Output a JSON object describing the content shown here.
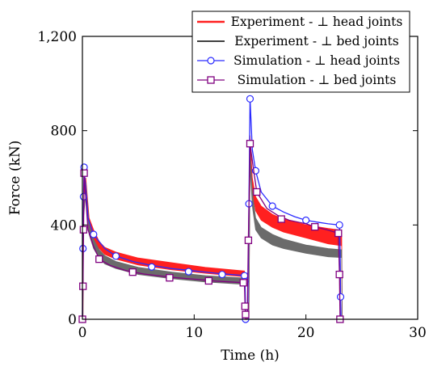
{
  "chart_data": {
    "type": "line",
    "xlabel": "Time (h)",
    "ylabel": "Force (kN)",
    "xlim": [
      0,
      30
    ],
    "ylim": [
      0,
      1200
    ],
    "x_ticks": [
      0,
      10,
      20,
      30
    ],
    "x_tick_labels": [
      "0",
      "10",
      "20",
      "30"
    ],
    "y_ticks": [
      0,
      400,
      800,
      1200
    ],
    "y_tick_labels": [
      "0",
      "400",
      "800",
      "1,200"
    ],
    "grid": false,
    "legend_position": "top-right",
    "series": [
      {
        "name": "Experiment - ⊥ head joints",
        "color": "#ff2020",
        "style": "band",
        "upper": [
          [
            0.05,
            0
          ],
          [
            0.1,
            520
          ],
          [
            0.3,
            600
          ],
          [
            0.6,
            430
          ],
          [
            1,
            380
          ],
          [
            1.5,
            330
          ],
          [
            2,
            305
          ],
          [
            3,
            285
          ],
          [
            5,
            260
          ],
          [
            8,
            240
          ],
          [
            11,
            220
          ],
          [
            14.5,
            205
          ],
          [
            14.6,
            0
          ],
          [
            14.9,
            0
          ],
          [
            15.0,
            780
          ],
          [
            15.2,
            600
          ],
          [
            15.5,
            520
          ],
          [
            16,
            480
          ],
          [
            17,
            445
          ],
          [
            18,
            425
          ],
          [
            20,
            400
          ],
          [
            22,
            385
          ],
          [
            23.2,
            378
          ],
          [
            23.25,
            0
          ]
        ],
        "lower": [
          [
            0.05,
            0
          ],
          [
            0.1,
            470
          ],
          [
            0.3,
            560
          ],
          [
            0.6,
            390
          ],
          [
            1,
            340
          ],
          [
            1.5,
            300
          ],
          [
            2,
            275
          ],
          [
            3,
            255
          ],
          [
            5,
            230
          ],
          [
            8,
            210
          ],
          [
            11,
            195
          ],
          [
            14.5,
            180
          ],
          [
            14.6,
            0
          ],
          [
            14.9,
            0
          ],
          [
            15.0,
            700
          ],
          [
            15.2,
            540
          ],
          [
            15.5,
            460
          ],
          [
            16,
            420
          ],
          [
            17,
            390
          ],
          [
            18,
            370
          ],
          [
            20,
            345
          ],
          [
            22,
            320
          ],
          [
            23.2,
            312
          ],
          [
            23.25,
            0
          ]
        ]
      },
      {
        "name": "Experiment - ⊥ bed joints",
        "color": "#000000",
        "style": "band",
        "band_color": "#6b6b6b",
        "upper": [
          [
            0.05,
            0
          ],
          [
            0.1,
            480
          ],
          [
            0.3,
            580
          ],
          [
            0.6,
            400
          ],
          [
            1,
            340
          ],
          [
            1.5,
            295
          ],
          [
            2,
            270
          ],
          [
            3,
            245
          ],
          [
            5,
            220
          ],
          [
            8,
            200
          ],
          [
            11,
            185
          ],
          [
            14.5,
            175
          ],
          [
            14.6,
            0
          ],
          [
            14.9,
            0
          ],
          [
            15.0,
            720
          ],
          [
            15.2,
            540
          ],
          [
            15.5,
            430
          ],
          [
            16,
            390
          ],
          [
            17,
            360
          ],
          [
            18,
            340
          ],
          [
            20,
            315
          ],
          [
            22,
            300
          ],
          [
            23.2,
            295
          ],
          [
            23.25,
            0
          ]
        ],
        "lower": [
          [
            0.05,
            0
          ],
          [
            0.1,
            430
          ],
          [
            0.3,
            540
          ],
          [
            0.6,
            360
          ],
          [
            1,
            300
          ],
          [
            1.5,
            260
          ],
          [
            2,
            235
          ],
          [
            3,
            215
          ],
          [
            5,
            190
          ],
          [
            8,
            172
          ],
          [
            11,
            158
          ],
          [
            14.5,
            148
          ],
          [
            14.6,
            0
          ],
          [
            14.9,
            0
          ],
          [
            15.0,
            650
          ],
          [
            15.2,
            480
          ],
          [
            15.5,
            380
          ],
          [
            16,
            345
          ],
          [
            17,
            315
          ],
          [
            18,
            300
          ],
          [
            20,
            280
          ],
          [
            22,
            265
          ],
          [
            23.2,
            262
          ],
          [
            23.25,
            0
          ]
        ]
      },
      {
        "name": "Simulation - ⊥ head joints",
        "color": "#2a2aff",
        "marker": "circle",
        "points": [
          [
            0,
            0
          ],
          [
            0.05,
            300
          ],
          [
            0.1,
            520
          ],
          [
            0.15,
            645
          ],
          [
            0.5,
            430
          ],
          [
            1,
            360
          ],
          [
            2,
            300
          ],
          [
            3,
            268
          ],
          [
            4.5,
            245
          ],
          [
            6,
            230
          ],
          [
            8,
            215
          ],
          [
            10,
            205
          ],
          [
            12,
            195
          ],
          [
            14.5,
            185
          ],
          [
            14.55,
            160
          ],
          [
            14.6,
            0
          ],
          [
            14.8,
            0
          ],
          [
            14.9,
            490
          ],
          [
            15.0,
            935
          ],
          [
            15.2,
            720
          ],
          [
            15.5,
            630
          ],
          [
            16,
            540
          ],
          [
            17,
            480
          ],
          [
            18,
            455
          ],
          [
            19,
            435
          ],
          [
            20,
            420
          ],
          [
            21,
            412
          ],
          [
            22,
            405
          ],
          [
            23,
            400
          ],
          [
            23.05,
            300
          ],
          [
            23.1,
            95
          ],
          [
            23.15,
            0
          ]
        ],
        "markers": [
          [
            0,
            0
          ],
          [
            0.05,
            300
          ],
          [
            0.1,
            520
          ],
          [
            0.15,
            645
          ],
          [
            1,
            360
          ],
          [
            3,
            268
          ],
          [
            6.2,
            222
          ],
          [
            9.5,
            202
          ],
          [
            12.5,
            190
          ],
          [
            14.5,
            185
          ],
          [
            14.55,
            160
          ],
          [
            14.6,
            0
          ],
          [
            14.9,
            490
          ],
          [
            15.0,
            935
          ],
          [
            15.5,
            630
          ],
          [
            17,
            480
          ],
          [
            20,
            420
          ],
          [
            23,
            400
          ],
          [
            23.1,
            95
          ]
        ]
      },
      {
        "name": "Simulation - ⊥ bed joints",
        "color": "#800080",
        "marker": "square",
        "points": [
          [
            0,
            0
          ],
          [
            0.05,
            140
          ],
          [
            0.1,
            380
          ],
          [
            0.15,
            620
          ],
          [
            0.5,
            380
          ],
          [
            1,
            310
          ],
          [
            1.5,
            255
          ],
          [
            2.5,
            228
          ],
          [
            4,
            205
          ],
          [
            5.5,
            192
          ],
          [
            8,
            178
          ],
          [
            10,
            170
          ],
          [
            12,
            162
          ],
          [
            14.5,
            155
          ],
          [
            14.55,
            55
          ],
          [
            14.6,
            0
          ],
          [
            14.75,
            0
          ],
          [
            14.85,
            335
          ],
          [
            15.0,
            745
          ],
          [
            15.3,
            640
          ],
          [
            15.6,
            540
          ],
          [
            16.5,
            470
          ],
          [
            17.5,
            440
          ],
          [
            18.5,
            420
          ],
          [
            20,
            405
          ],
          [
            21,
            390
          ],
          [
            22,
            378
          ],
          [
            22.9,
            365
          ],
          [
            23.0,
            190
          ],
          [
            23.05,
            0
          ]
        ],
        "markers": [
          [
            0,
            0
          ],
          [
            0.05,
            140
          ],
          [
            0.1,
            380
          ],
          [
            0.15,
            620
          ],
          [
            1.5,
            255
          ],
          [
            4.5,
            200
          ],
          [
            7.8,
            176
          ],
          [
            11.3,
            163
          ],
          [
            14.4,
            155
          ],
          [
            14.55,
            55
          ],
          [
            14.6,
            20
          ],
          [
            14.85,
            335
          ],
          [
            15.0,
            745
          ],
          [
            15.6,
            540
          ],
          [
            17.8,
            425
          ],
          [
            20.8,
            392
          ],
          [
            22.9,
            365
          ],
          [
            23.0,
            190
          ],
          [
            23.05,
            0
          ]
        ]
      }
    ]
  }
}
